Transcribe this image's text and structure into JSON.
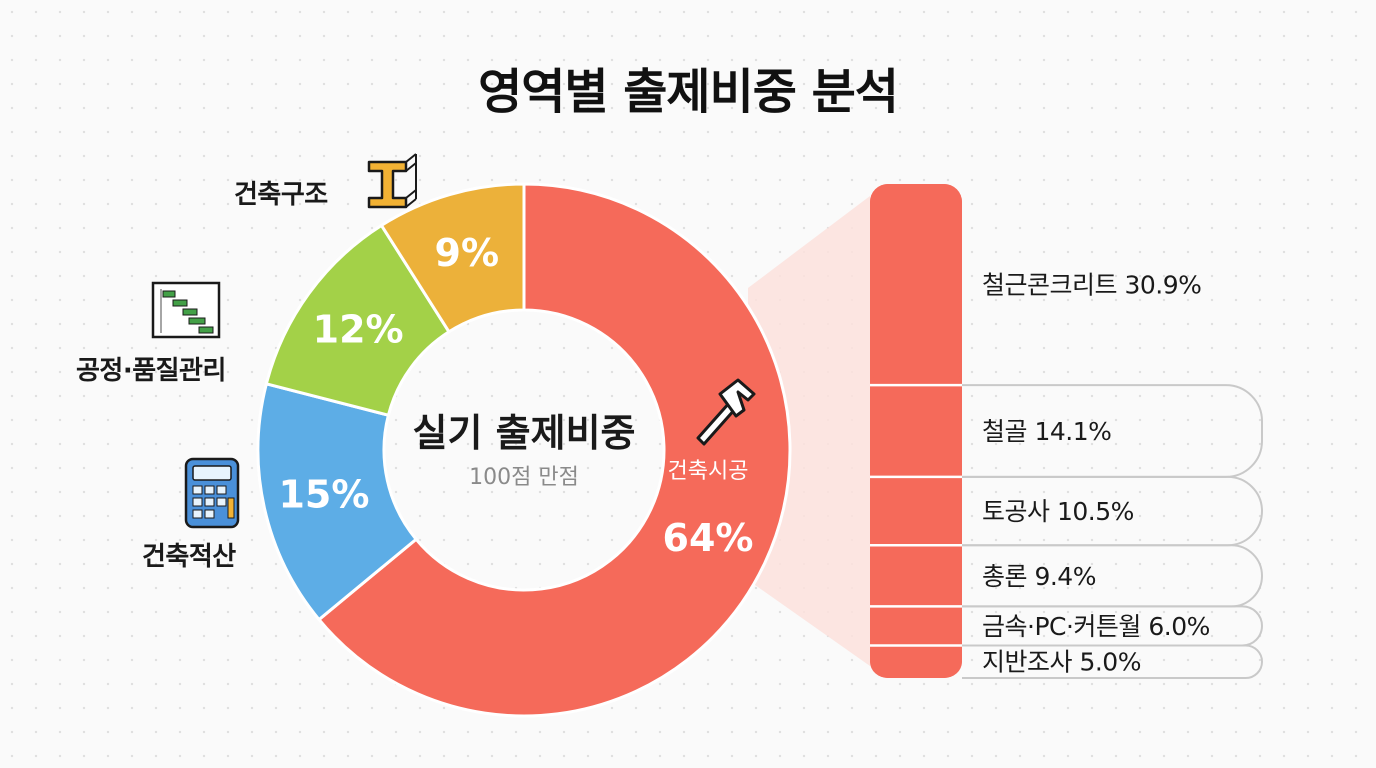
{
  "title": "영역별 출제비중 분석",
  "center": {
    "main": "실기 출제비중",
    "sub": "100점 만점"
  },
  "colors": {
    "construction": "#f56a5a",
    "estimation": "#5dade6",
    "schedule": "#a3d148",
    "structure": "#ecb13a",
    "connector": "#fbe0dc"
  },
  "icons": {
    "structure": "i-beam-icon",
    "schedule": "gantt-chart-icon",
    "estimation": "calculator-icon",
    "construction": "hammer-icon"
  },
  "chart_data": {
    "type": "pie",
    "title": "영역별 출제비중 분석",
    "segments": [
      {
        "name": "건축시공",
        "value": 64,
        "label": "64%",
        "color": "#f56a5a"
      },
      {
        "name": "건축적산",
        "value": 15,
        "label": "15%",
        "color": "#5dade6"
      },
      {
        "name": "공정·품질관리",
        "value": 12,
        "label": "12%",
        "color": "#a3d148"
      },
      {
        "name": "건축구조",
        "value": 9,
        "label": "9%",
        "color": "#ecb13a"
      }
    ],
    "breakdown": {
      "parent": "건축시공",
      "items": [
        {
          "name": "철근콘크리트",
          "value": 30.9,
          "label": "철근콘크리트 30.9%"
        },
        {
          "name": "철골",
          "value": 14.1,
          "label": "철골 14.1%"
        },
        {
          "name": "토공사",
          "value": 10.5,
          "label": "토공사 10.5%"
        },
        {
          "name": "총론",
          "value": 9.4,
          "label": "총론 9.4%"
        },
        {
          "name": "금속·PC·커튼월",
          "value": 6.0,
          "label": "금속·PC·커튼월 6.0%"
        },
        {
          "name": "지반조사",
          "value": 5.0,
          "label": "지반조사 5.0%"
        }
      ]
    }
  }
}
